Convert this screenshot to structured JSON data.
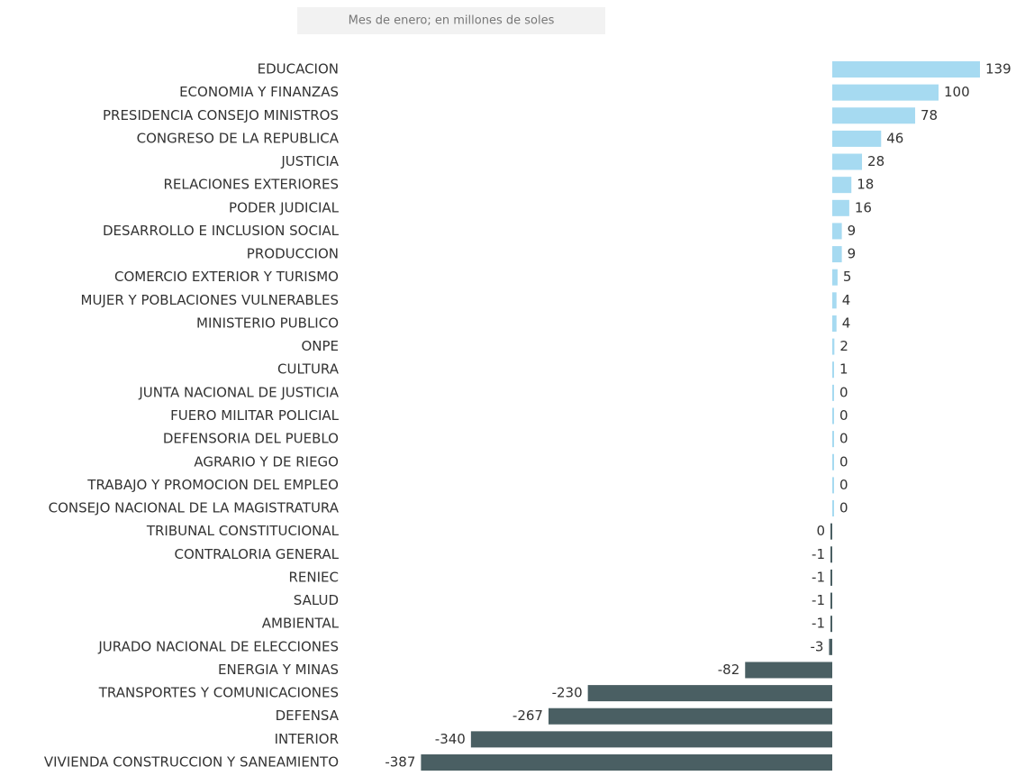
{
  "chart_data": {
    "type": "bar",
    "orientation": "horizontal",
    "subtitle": "Mes de enero; en millones de soles",
    "categories": [
      "EDUCACION",
      "ECONOMIA Y FINANZAS",
      "PRESIDENCIA CONSEJO MINISTROS",
      "CONGRESO DE LA REPUBLICA",
      "JUSTICIA",
      "RELACIONES EXTERIORES",
      "PODER JUDICIAL",
      "DESARROLLO E INCLUSION SOCIAL",
      "PRODUCCION",
      "COMERCIO EXTERIOR Y TURISMO",
      "MUJER Y POBLACIONES VULNERABLES",
      "MINISTERIO PUBLICO",
      "ONPE",
      "CULTURA",
      "JUNTA NACIONAL DE JUSTICIA",
      "FUERO MILITAR POLICIAL",
      "DEFENSORIA DEL PUEBLO",
      "AGRARIO Y DE RIEGO",
      "TRABAJO Y PROMOCION DEL EMPLEO",
      "CONSEJO NACIONAL DE LA MAGISTRATURA",
      "TRIBUNAL CONSTITUCIONAL",
      "CONTRALORIA GENERAL",
      "RENIEC",
      "SALUD",
      "AMBIENTAL",
      "JURADO NACIONAL DE ELECCIONES",
      "ENERGIA Y MINAS",
      "TRANSPORTES Y COMUNICACIONES",
      "DEFENSA",
      "INTERIOR",
      "VIVIENDA CONSTRUCCION Y SANEAMIENTO"
    ],
    "values": [
      139,
      100,
      78,
      46,
      28,
      18,
      16,
      9,
      9,
      5,
      4,
      4,
      2,
      1,
      0.3,
      0.3,
      0.3,
      0.3,
      0.3,
      0.3,
      -0.3,
      -1,
      -1,
      -1,
      -1,
      -3,
      -82,
      -230,
      -267,
      -340,
      -387
    ],
    "value_labels": [
      "139",
      "100",
      "78",
      "46",
      "28",
      "18",
      "16",
      "9",
      "9",
      "5",
      "4",
      "4",
      "2",
      "1",
      "0",
      "0",
      "0",
      "0",
      "0",
      "0",
      "0",
      "-1",
      "-1",
      "-1",
      "-1",
      "-3",
      "-82",
      "-230",
      "-267",
      "-340",
      "-387"
    ],
    "positive_color": "#a6daf1",
    "negative_color": "#4a5f63"
  }
}
